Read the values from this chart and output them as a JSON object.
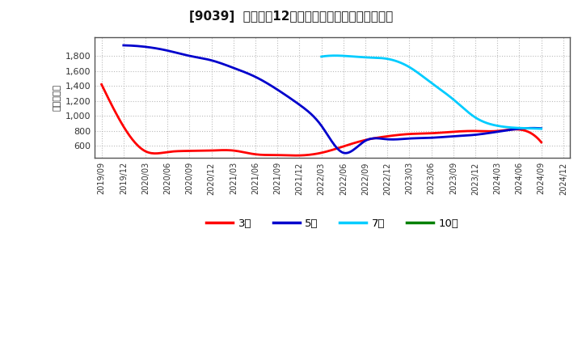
{
  "title": "[9039]  経常利益12か月移動合計の標準偏差の推移",
  "ylabel": "（百万円）",
  "background_color": "#ffffff",
  "plot_bg_color": "#ffffff",
  "grid_color": "#aaaaaa",
  "ylim": [
    440,
    2050
  ],
  "yticks": [
    600,
    800,
    1000,
    1200,
    1400,
    1600,
    1800
  ],
  "series": {
    "3年": {
      "color": "#ff0000",
      "dates": [
        "2019/09",
        "2019/12",
        "2020/03",
        "2020/06",
        "2020/09",
        "2020/12",
        "2021/03",
        "2021/06",
        "2021/09",
        "2021/12",
        "2022/03",
        "2022/06",
        "2022/09",
        "2022/12",
        "2023/03",
        "2023/06",
        "2023/09",
        "2023/12",
        "2024/03",
        "2024/06",
        "2024/09"
      ],
      "values": [
        1420,
        860,
        530,
        520,
        535,
        540,
        540,
        490,
        480,
        475,
        510,
        595,
        680,
        730,
        760,
        770,
        790,
        800,
        800,
        820,
        650
      ]
    },
    "5年": {
      "color": "#0000cc",
      "dates": [
        "2019/12",
        "2020/03",
        "2020/06",
        "2020/09",
        "2020/12",
        "2021/03",
        "2021/06",
        "2021/09",
        "2021/12",
        "2022/03",
        "2022/06",
        "2022/09",
        "2022/12",
        "2023/03",
        "2023/06",
        "2023/09",
        "2023/12",
        "2024/03",
        "2024/06",
        "2024/09"
      ],
      "values": [
        1940,
        1920,
        1870,
        1800,
        1740,
        1640,
        1520,
        1350,
        1150,
        870,
        510,
        670,
        690,
        700,
        710,
        730,
        750,
        790,
        830,
        835
      ]
    },
    "7年": {
      "color": "#00ccff",
      "dates": [
        "2022/03",
        "2022/06",
        "2022/09",
        "2022/12",
        "2023/03",
        "2023/06",
        "2023/09",
        "2023/12",
        "2024/03",
        "2024/06",
        "2024/09"
      ],
      "values": [
        1790,
        1800,
        1780,
        1760,
        1650,
        1440,
        1220,
        980,
        870,
        840,
        830
      ]
    },
    "10年": {
      "color": "#008000",
      "dates": [],
      "values": []
    }
  },
  "legend_labels": [
    "3年",
    "5年",
    "7年",
    "10年"
  ],
  "legend_colors": [
    "#ff0000",
    "#0000cc",
    "#00ccff",
    "#008000"
  ],
  "x_tick_labels": [
    "2019/09",
    "2019/12",
    "2020/03",
    "2020/06",
    "2020/09",
    "2020/12",
    "2021/03",
    "2021/06",
    "2021/09",
    "2021/12",
    "2022/03",
    "2022/06",
    "2022/09",
    "2022/12",
    "2023/03",
    "2023/06",
    "2023/09",
    "2023/12",
    "2024/03",
    "2024/06",
    "2024/09",
    "2024/12"
  ]
}
